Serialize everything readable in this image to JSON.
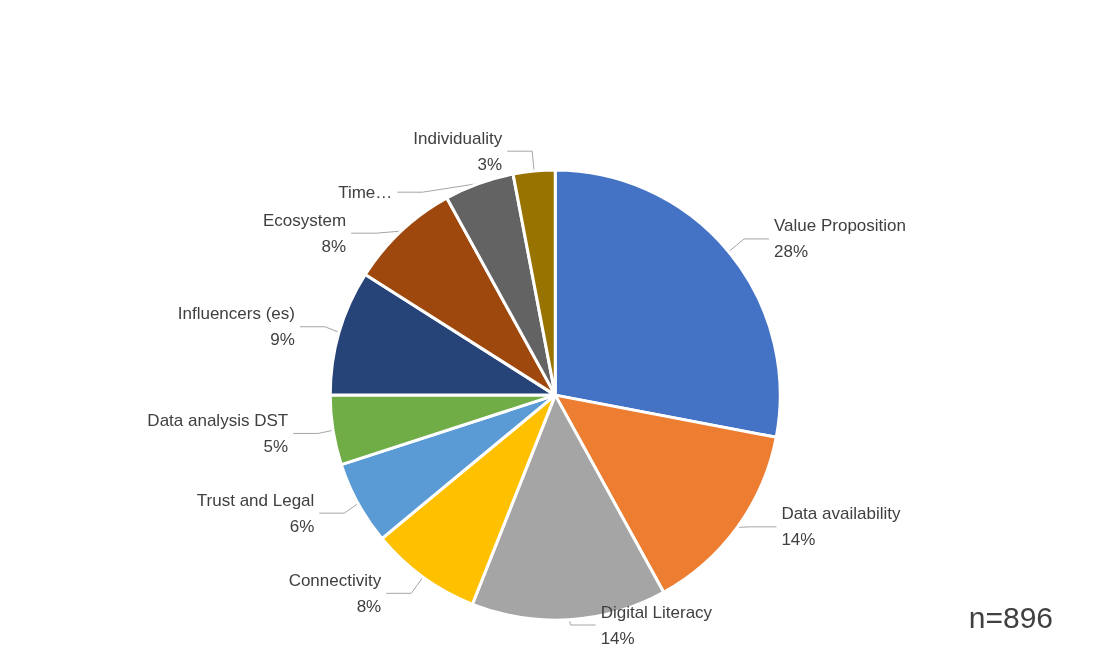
{
  "chart_data": {
    "type": "pie",
    "categories": [
      "Value Proposition",
      "Data availability",
      "Digital Literacy",
      "Connectivity",
      "Trust and Legal",
      "Data analysis DST",
      "Influencers (es)",
      "Ecosystem",
      "Time…",
      "Individuality"
    ],
    "values": [
      28,
      14,
      14,
      8,
      6,
      5,
      9,
      8,
      5,
      3
    ],
    "value_labels": [
      "28%",
      "14%",
      "14%",
      "8%",
      "6%",
      "5%",
      "9%",
      "8%",
      null,
      "3%"
    ],
    "colors": [
      "#4472c4",
      "#ed7d31",
      "#a5a5a5",
      "#ffc000",
      "#5b9bd5",
      "#70ad47",
      "#264478",
      "#9e480e",
      "#636363",
      "#997300"
    ],
    "annotations": [
      "n=896"
    ],
    "legend": false
  }
}
